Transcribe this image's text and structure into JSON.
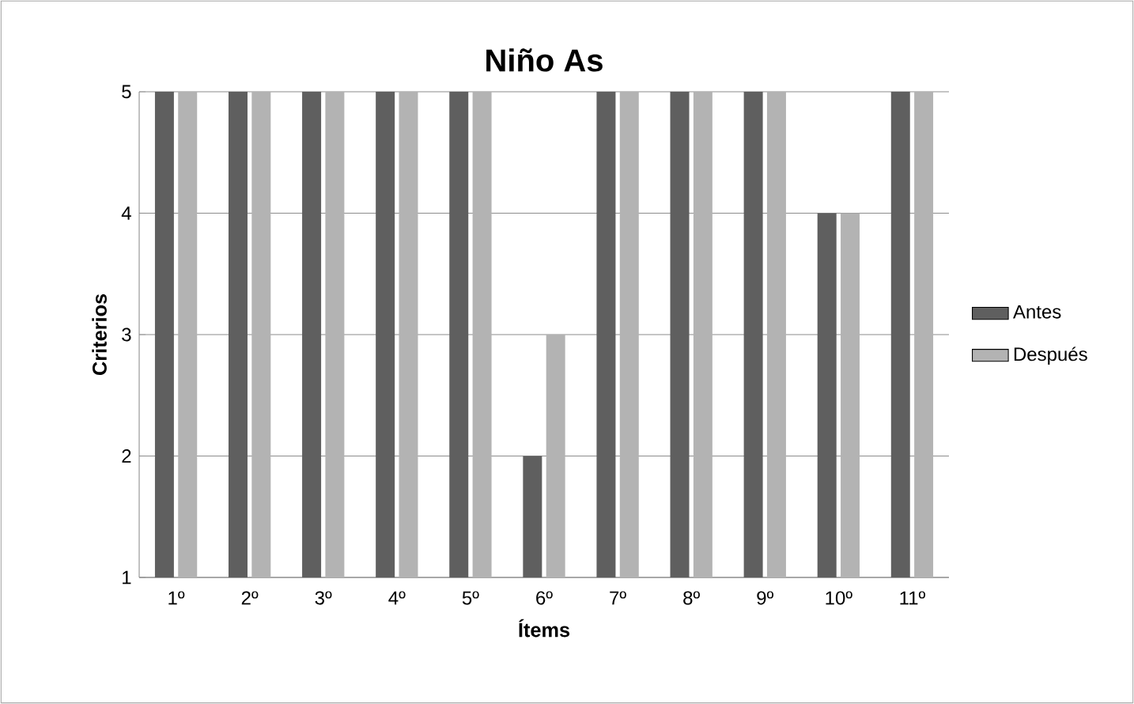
{
  "chart_data": {
    "type": "bar",
    "title": "Niño As",
    "xlabel": "Ítems",
    "ylabel": "Criterios",
    "categories": [
      "1º",
      "2º",
      "3º",
      "4º",
      "5º",
      "6º",
      "7º",
      "8º",
      "9º",
      "10º",
      "11º"
    ],
    "series": [
      {
        "name": "Antes",
        "color": "#5f5f5f",
        "values": [
          5,
          5,
          5,
          5,
          5,
          2,
          5,
          5,
          5,
          4,
          5
        ]
      },
      {
        "name": "Después",
        "color": "#b3b3b3",
        "values": [
          5,
          5,
          5,
          5,
          5,
          3,
          5,
          5,
          5,
          4,
          5
        ]
      }
    ],
    "ylim": [
      1,
      5
    ],
    "yticks": [
      1,
      2,
      3,
      4,
      5
    ],
    "grid": "y",
    "legend": "right"
  }
}
